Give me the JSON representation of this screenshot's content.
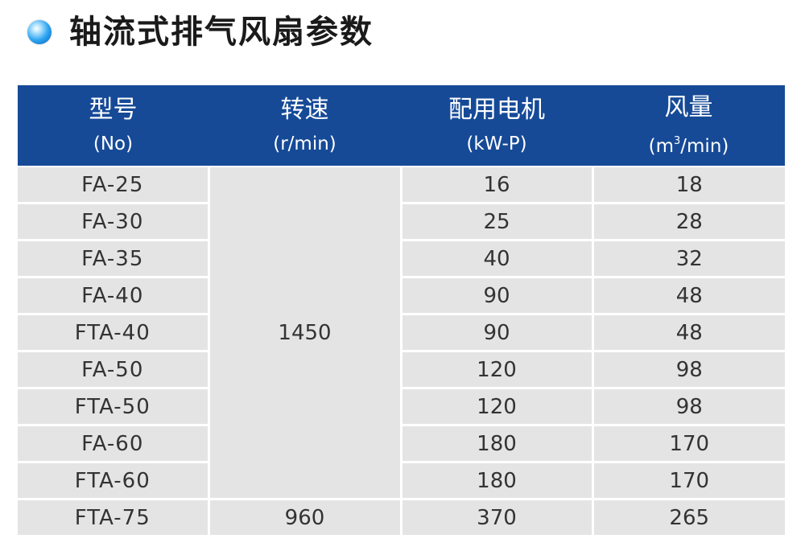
{
  "title": "轴流式排气风扇参数",
  "header": {
    "model": "型号",
    "model_unit": "(No)",
    "speed": "转速",
    "speed_unit": "(r/min)",
    "motor": "配用电机",
    "motor_unit": "(kW-P)",
    "air": "风量",
    "air_unit_pre": "(m",
    "air_unit_sup": "3",
    "air_unit_post": "/min)"
  },
  "speed_groups": {
    "group1": "1450",
    "group2": "960"
  },
  "rows": [
    {
      "model": "FA-25",
      "motor": "16",
      "air": "18"
    },
    {
      "model": "FA-30",
      "motor": "25",
      "air": "28"
    },
    {
      "model": "FA-35",
      "motor": "40",
      "air": "32"
    },
    {
      "model": "FA-40",
      "motor": "90",
      "air": "48"
    },
    {
      "model": "FTA-40",
      "motor": "90",
      "air": "48"
    },
    {
      "model": "FA-50",
      "motor": "120",
      "air": "98"
    },
    {
      "model": "FTA-50",
      "motor": "120",
      "air": "98"
    },
    {
      "model": "FA-60",
      "motor": "180",
      "air": "170"
    },
    {
      "model": "FTA-60",
      "motor": "180",
      "air": "170"
    },
    {
      "model": "FTA-75",
      "motor": "370",
      "air": "265"
    }
  ]
}
